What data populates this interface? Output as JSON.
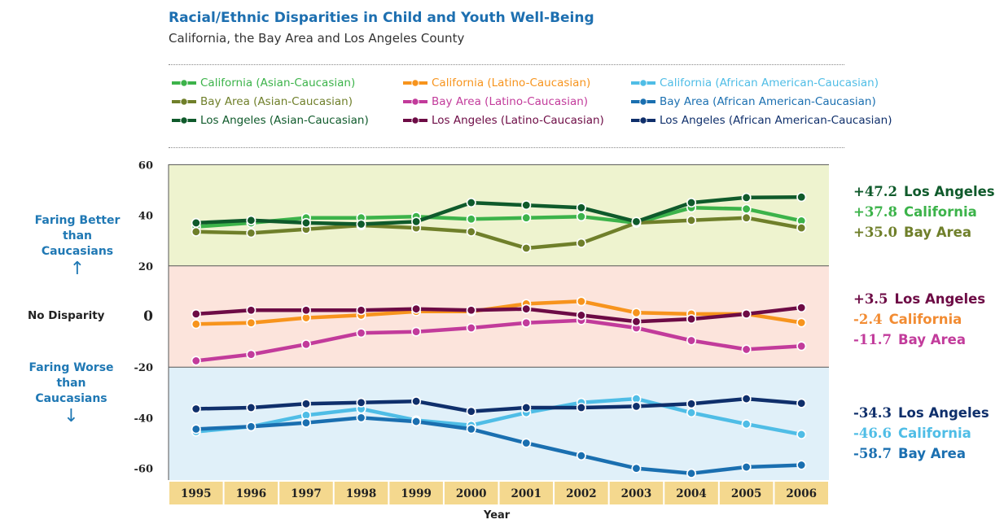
{
  "title": "Racial/Ethnic Disparities in Child and Youth Well-Being",
  "subtitle": "California, the Bay Area and Los Angeles County",
  "side_labels": {
    "better": "Faring Better than Caucasians",
    "better_arrow": "↑",
    "no_disparity": "No Disparity",
    "worse": "Faring Worse than Caucasians",
    "worse_arrow": "↓"
  },
  "colors": {
    "band_better": "#eef3cf",
    "band_neutral": "#fce4dc",
    "band_worse": "#e0f0f9",
    "xaxis_band": "#f4d88e"
  },
  "annotations": [
    {
      "value": "+47.2",
      "label": "Los Angeles",
      "color": "#0f5a2b",
      "label_color": "#0f5a2b"
    },
    {
      "value": "+37.8",
      "label": "California",
      "color": "#3cb34a",
      "label_color": "#3cb34a"
    },
    {
      "value": "+35.0",
      "label": "Bay Area",
      "color": "#6f7f2a",
      "label_color": "#6f7f2a"
    },
    {
      "value": "+3.5",
      "label": "Los Angeles",
      "color": "#6d0b45",
      "label_color": "#6d0b45"
    },
    {
      "value": "-2.4",
      "label": "California",
      "color": "#f28c33",
      "label_color": "#f28c33"
    },
    {
      "value": "-11.7",
      "label": "Bay Area",
      "color": "#c23b9b",
      "label_color": "#c23b9b"
    },
    {
      "value": "-34.3",
      "label": "Los Angeles",
      "color": "#0f2f6b",
      "label_color": "#0f2f6b"
    },
    {
      "value": "-46.6",
      "label": "California",
      "color": "#4fbde6",
      "label_color": "#4fbde6"
    },
    {
      "value": "-58.7",
      "label": "Bay Area",
      "color": "#1a6fb0",
      "label_color": "#1a6fb0"
    }
  ],
  "chart_data": {
    "type": "line",
    "title": "Racial/Ethnic Disparities in Child and Youth Well-Being",
    "subtitle": "California, the Bay Area and Los Angeles County",
    "xlabel": "Year",
    "ylabel": "",
    "ylim": [
      -65,
      60
    ],
    "yticks": [
      60,
      40,
      20,
      0,
      -20,
      -40,
      -60
    ],
    "x": [
      "1995",
      "1996",
      "1997",
      "1998",
      "1999",
      "2000",
      "2001",
      "2002",
      "2003",
      "2004",
      "2005",
      "2006"
    ],
    "legend": "top",
    "grid": false,
    "series": [
      {
        "name": "California (Asian-Caucasian)",
        "color": "#3cb34a",
        "values": [
          35.5,
          37,
          39,
          39,
          39.5,
          38.5,
          39,
          39.5,
          37,
          43,
          42.5,
          37.8
        ]
      },
      {
        "name": "California (Latino-Caucasian)",
        "color": "#f7941d",
        "values": [
          -3,
          -2.5,
          -0.5,
          0.5,
          2,
          2,
          5,
          6,
          1.5,
          1,
          1,
          -2.4
        ]
      },
      {
        "name": "California (African American-Caucasian)",
        "color": "#4fbde6",
        "values": [
          -45.5,
          -43.5,
          -39,
          -36.5,
          -41,
          -43,
          -38,
          -34,
          -32.5,
          -38,
          -42.5,
          -46.6
        ]
      },
      {
        "name": "Bay Area (Asian-Caucasian)",
        "color": "#6f7f2a",
        "values": [
          33.5,
          33,
          34.5,
          36,
          35,
          33.5,
          27,
          29,
          37,
          38,
          39,
          35.0
        ]
      },
      {
        "name": "Bay Area (Latino-Caucasian)",
        "color": "#c23b9b",
        "values": [
          -17.5,
          -15,
          -11,
          -6.5,
          -6,
          -4.5,
          -2.5,
          -1.5,
          -4.5,
          -9.5,
          -13,
          -11.7
        ]
      },
      {
        "name": "Bay Area (African American-Caucasian)",
        "color": "#1a6fb0",
        "values": [
          -44.5,
          -43.5,
          -42,
          -40,
          -41.5,
          -44.5,
          -50,
          -55,
          -60,
          -62,
          -59.5,
          -58.7
        ]
      },
      {
        "name": "Los Angeles (Asian-Caucasian)",
        "color": "#0f5a2b",
        "values": [
          37,
          38,
          37,
          36.5,
          37.5,
          45,
          44,
          43,
          37.5,
          45,
          47,
          47.2
        ]
      },
      {
        "name": "Los Angeles (Latino-Caucasian)",
        "color": "#6d0b45",
        "values": [
          1,
          2.5,
          2.5,
          2.5,
          3,
          2.5,
          3,
          0.5,
          -2,
          -1,
          1,
          3.5
        ]
      },
      {
        "name": "Los Angeles (African American-Caucasian)",
        "color": "#0f2f6b",
        "values": [
          -36.5,
          -36,
          -34.5,
          -34,
          -33.5,
          -37.5,
          -36,
          -36,
          -35.5,
          -34.5,
          -32.5,
          -34.3
        ]
      }
    ]
  }
}
